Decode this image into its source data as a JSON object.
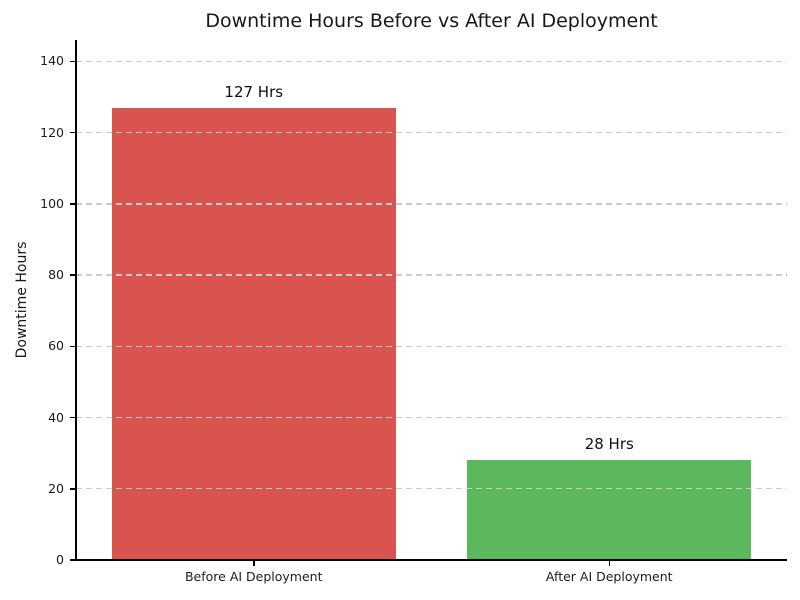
{
  "chart_data": {
    "type": "bar",
    "title": "Downtime Hours Before vs After AI Deployment",
    "ylabel": "Downtime Hours",
    "xlabel": "",
    "categories": [
      "Before AI Deployment",
      "After AI Deployment"
    ],
    "values": [
      127,
      28
    ],
    "bar_labels": [
      "127 Hrs",
      "28 Hrs"
    ],
    "bar_colors": [
      "#d9534f",
      "#5cb85c"
    ],
    "bar_width_ratio": 0.8,
    "yticks": [
      0,
      20,
      40,
      60,
      80,
      100,
      120,
      140
    ],
    "ylim": [
      0,
      146
    ],
    "grid": "horizontal",
    "grid_style": "dashed",
    "grid_color": "#cbcbcb",
    "grid_above_bars": true,
    "legend_position": "none",
    "spines_visible": [
      "left",
      "bottom"
    ]
  }
}
